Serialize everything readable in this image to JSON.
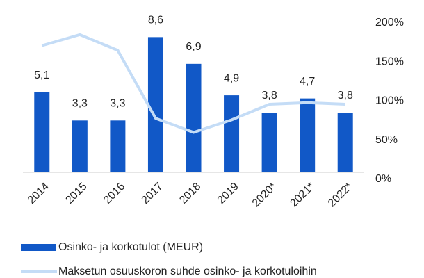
{
  "chart_data": {
    "type": "bar",
    "categories": [
      "2014",
      "2015",
      "2016",
      "2017",
      "2018",
      "2019",
      "2020*",
      "2021*",
      "2022*"
    ],
    "series": [
      {
        "name": "Osinko- ja korkotulot (MEUR)",
        "color": "#1158c7",
        "type": "bar",
        "values": [
          5.1,
          3.3,
          3.3,
          8.6,
          6.9,
          4.9,
          3.8,
          4.7,
          3.8
        ],
        "value_labels": [
          "5,1",
          "3,3",
          "3,3",
          "8,6",
          "6,9",
          "4,9",
          "3,8",
          "4,7",
          "3,8"
        ]
      },
      {
        "name": "Maksetun osuuskoron suhde osinko- ja korkotuloihin",
        "color": "#c4dcf6",
        "type": "line",
        "axis": "y2",
        "values": [
          171,
          185,
          165,
          78,
          60,
          76,
          96,
          98,
          96
        ]
      }
    ],
    "ylim": [
      0,
      9.5
    ],
    "y2lim": [
      0,
      200
    ],
    "y2ticks": [
      {
        "value": 0,
        "label": "0%"
      },
      {
        "value": 50,
        "label": "50%"
      },
      {
        "value": 100,
        "label": "100%"
      },
      {
        "value": 150,
        "label": "150%"
      },
      {
        "value": 200,
        "label": "200%"
      }
    ]
  }
}
